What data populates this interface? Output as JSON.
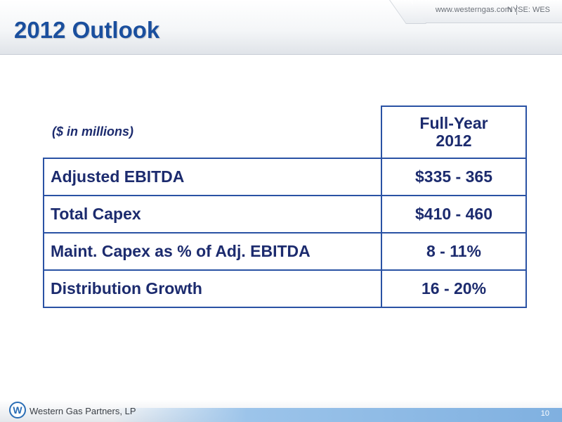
{
  "header": {
    "website": "www.westerngas.com",
    "ticker": "NYSE: WES",
    "title": "2012 Outlook"
  },
  "table": {
    "units_note": "($ in millions)",
    "column_header_line1": "Full-Year",
    "column_header_line2": "2012",
    "rows": [
      {
        "label": "Adjusted EBITDA",
        "value": "$335 - 365"
      },
      {
        "label": "Total Capex",
        "value": "$410 - 460"
      },
      {
        "label": "Maint. Capex as % of Adj. EBITDA",
        "value": "8 - 11%"
      },
      {
        "label": "Distribution Growth",
        "value": "16 - 20%"
      }
    ]
  },
  "footer": {
    "logo_letter": "W",
    "company": "Western Gas Partners, LP",
    "page_number": "10"
  },
  "colors": {
    "title_blue": "#1a4f9e",
    "table_text": "#1c2b6e",
    "table_border": "#2a52a4"
  }
}
